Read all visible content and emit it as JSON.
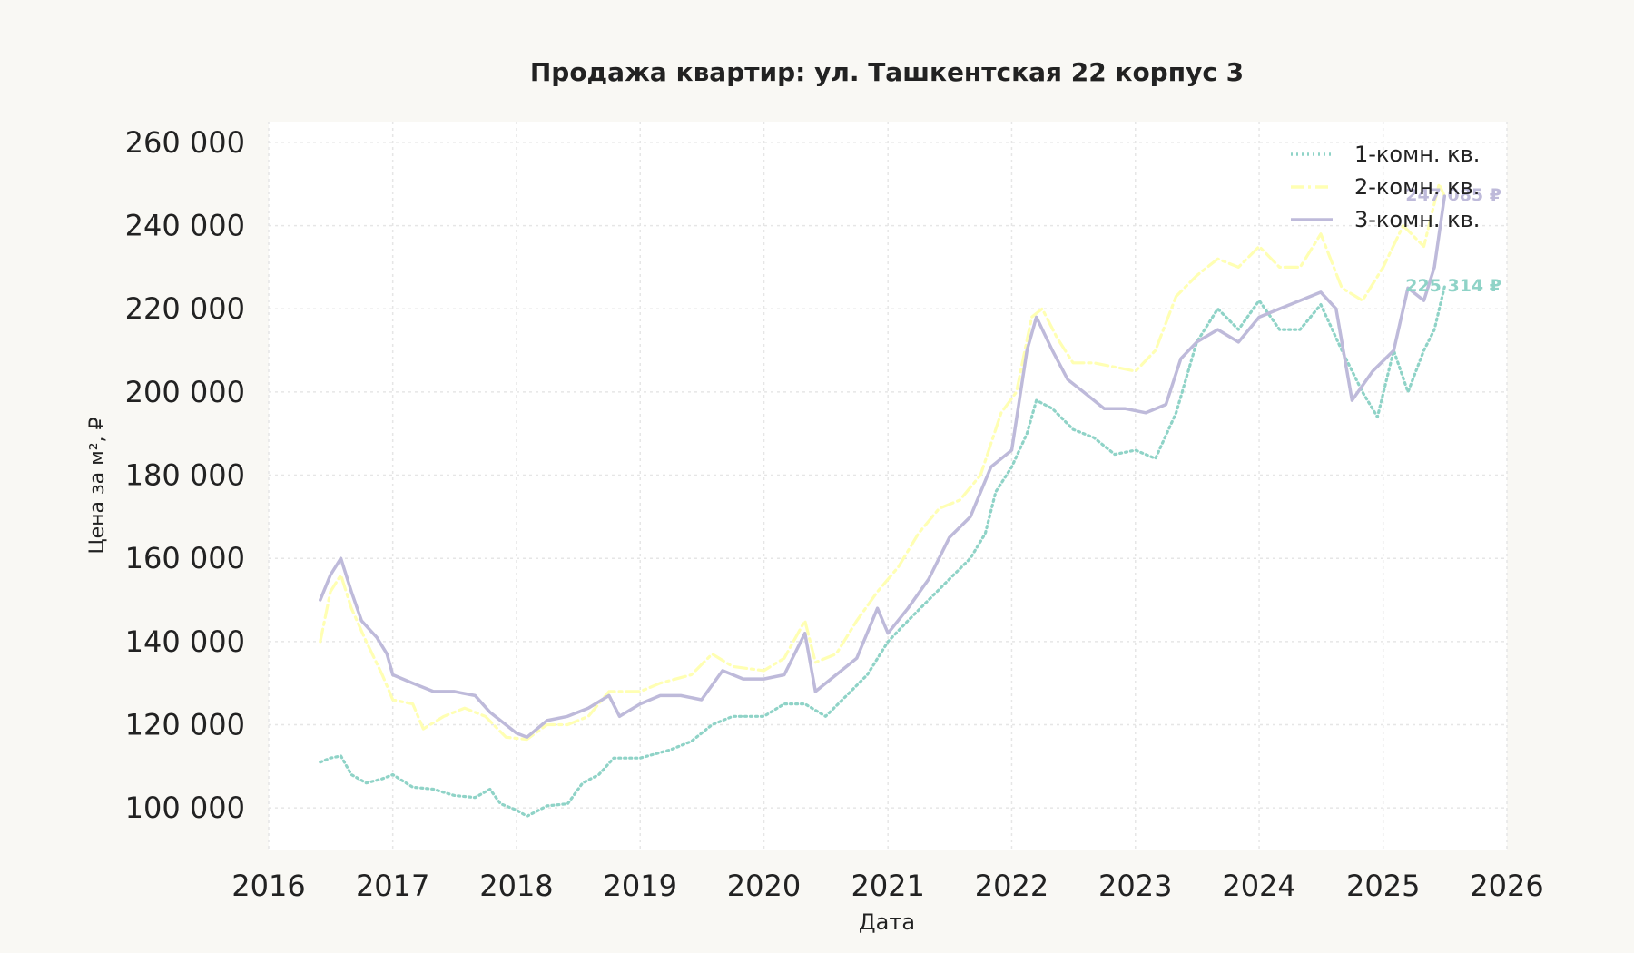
{
  "chart_data": {
    "type": "line",
    "title": "Продажа квартир: ул. Ташкентская 22 корпус 3",
    "xlabel": "Дата",
    "ylabel": "Цена за м², ₽",
    "xlim": [
      "2016-01-01",
      "2026-01-01"
    ],
    "ylim": [
      90000,
      265000
    ],
    "x_ticks": [
      "2016",
      "2017",
      "2018",
      "2019",
      "2020",
      "2021",
      "2022",
      "2023",
      "2024",
      "2025",
      "2026"
    ],
    "y_ticks": [
      100000,
      120000,
      140000,
      160000,
      180000,
      200000,
      220000,
      240000,
      260000
    ],
    "y_tick_labels": [
      "100 000",
      "120 000",
      "140 000",
      "160 000",
      "180 000",
      "200 000",
      "220 000",
      "240 000",
      "260 000"
    ],
    "grid": true,
    "legend_position": "top-right",
    "series": [
      {
        "name": "1-комн. кв.",
        "color": "#8fd3c7",
        "style": "dotted",
        "end_label": "225 314 ₽",
        "points": [
          [
            "2016-06-01",
            111000
          ],
          [
            "2016-07-01",
            112000
          ],
          [
            "2016-08-01",
            112500
          ],
          [
            "2016-09-01",
            108000
          ],
          [
            "2016-10-15",
            106000
          ],
          [
            "2016-12-01",
            107000
          ],
          [
            "2017-01-01",
            108000
          ],
          [
            "2017-03-01",
            105000
          ],
          [
            "2017-05-01",
            104500
          ],
          [
            "2017-07-01",
            103000
          ],
          [
            "2017-09-01",
            102500
          ],
          [
            "2017-10-15",
            104500
          ],
          [
            "2017-11-15",
            101000
          ],
          [
            "2018-01-01",
            99500
          ],
          [
            "2018-02-01",
            98000
          ],
          [
            "2018-04-01",
            100500
          ],
          [
            "2018-06-01",
            101000
          ],
          [
            "2018-07-15",
            106000
          ],
          [
            "2018-09-01",
            108000
          ],
          [
            "2018-10-15",
            112000
          ],
          [
            "2019-01-01",
            112000
          ],
          [
            "2019-04-01",
            114000
          ],
          [
            "2019-06-01",
            116000
          ],
          [
            "2019-08-01",
            120000
          ],
          [
            "2019-10-01",
            122000
          ],
          [
            "2020-01-01",
            122000
          ],
          [
            "2020-03-01",
            125000
          ],
          [
            "2020-05-01",
            125000
          ],
          [
            "2020-07-01",
            122000
          ],
          [
            "2020-09-01",
            127000
          ],
          [
            "2020-11-01",
            132000
          ],
          [
            "2021-01-01",
            140000
          ],
          [
            "2021-03-01",
            145000
          ],
          [
            "2021-05-01",
            150000
          ],
          [
            "2021-07-01",
            155000
          ],
          [
            "2021-09-01",
            160000
          ],
          [
            "2021-10-15",
            166000
          ],
          [
            "2021-11-15",
            176000
          ],
          [
            "2022-01-01",
            182000
          ],
          [
            "2022-02-15",
            190000
          ],
          [
            "2022-03-15",
            198000
          ],
          [
            "2022-05-01",
            196000
          ],
          [
            "2022-07-01",
            191000
          ],
          [
            "2022-09-01",
            189000
          ],
          [
            "2022-11-01",
            185000
          ],
          [
            "2023-01-01",
            186000
          ],
          [
            "2023-03-01",
            184000
          ],
          [
            "2023-05-01",
            195000
          ],
          [
            "2023-07-01",
            212000
          ],
          [
            "2023-09-01",
            220000
          ],
          [
            "2023-11-01",
            215000
          ],
          [
            "2024-01-01",
            222000
          ],
          [
            "2024-03-01",
            215000
          ],
          [
            "2024-05-01",
            215000
          ],
          [
            "2024-07-01",
            221000
          ],
          [
            "2024-09-01",
            210000
          ],
          [
            "2024-11-01",
            200000
          ],
          [
            "2024-12-15",
            194000
          ],
          [
            "2025-02-01",
            210000
          ],
          [
            "2025-03-15",
            200000
          ],
          [
            "2025-05-01",
            210000
          ],
          [
            "2025-06-01",
            215000
          ],
          [
            "2025-07-01",
            225314
          ]
        ]
      },
      {
        "name": "2-комн. кв.",
        "color": "#ffffb3",
        "style": "dashdot",
        "end_label": "",
        "points": [
          [
            "2016-06-01",
            140000
          ],
          [
            "2016-07-01",
            152000
          ],
          [
            "2016-08-01",
            156000
          ],
          [
            "2016-09-01",
            148000
          ],
          [
            "2016-10-15",
            140000
          ],
          [
            "2016-12-01",
            132000
          ],
          [
            "2017-01-01",
            126000
          ],
          [
            "2017-03-01",
            125000
          ],
          [
            "2017-04-01",
            119000
          ],
          [
            "2017-06-01",
            122000
          ],
          [
            "2017-08-01",
            124000
          ],
          [
            "2017-10-01",
            122000
          ],
          [
            "2017-12-01",
            117000
          ],
          [
            "2018-02-01",
            116500
          ],
          [
            "2018-04-01",
            120000
          ],
          [
            "2018-06-01",
            120000
          ],
          [
            "2018-08-01",
            122000
          ],
          [
            "2018-10-01",
            128000
          ],
          [
            "2019-01-01",
            128000
          ],
          [
            "2019-03-01",
            130000
          ],
          [
            "2019-06-01",
            132000
          ],
          [
            "2019-08-01",
            137000
          ],
          [
            "2019-10-01",
            134000
          ],
          [
            "2020-01-01",
            133000
          ],
          [
            "2020-03-01",
            136000
          ],
          [
            "2020-05-01",
            145000
          ],
          [
            "2020-06-01",
            135000
          ],
          [
            "2020-08-01",
            137000
          ],
          [
            "2020-10-01",
            145000
          ],
          [
            "2020-12-01",
            152000
          ],
          [
            "2021-02-01",
            158000
          ],
          [
            "2021-04-01",
            166000
          ],
          [
            "2021-06-01",
            172000
          ],
          [
            "2021-08-01",
            174000
          ],
          [
            "2021-10-01",
            180000
          ],
          [
            "2021-12-01",
            195000
          ],
          [
            "2022-01-15",
            200000
          ],
          [
            "2022-03-01",
            218000
          ],
          [
            "2022-04-01",
            220000
          ],
          [
            "2022-05-15",
            213000
          ],
          [
            "2022-07-01",
            207000
          ],
          [
            "2022-09-01",
            207000
          ],
          [
            "2022-11-01",
            206000
          ],
          [
            "2023-01-01",
            205000
          ],
          [
            "2023-03-01",
            210000
          ],
          [
            "2023-05-01",
            223000
          ],
          [
            "2023-07-01",
            228000
          ],
          [
            "2023-09-01",
            232000
          ],
          [
            "2023-11-01",
            230000
          ],
          [
            "2024-01-01",
            235000
          ],
          [
            "2024-03-01",
            230000
          ],
          [
            "2024-05-01",
            230000
          ],
          [
            "2024-07-01",
            238000
          ],
          [
            "2024-09-01",
            225000
          ],
          [
            "2024-11-01",
            222000
          ],
          [
            "2025-01-01",
            230000
          ],
          [
            "2025-03-01",
            240000
          ],
          [
            "2025-05-01",
            235000
          ],
          [
            "2025-06-15",
            250000
          ],
          [
            "2025-07-01",
            247085
          ]
        ]
      },
      {
        "name": "3-комн. кв.",
        "color": "#bebada",
        "style": "solid",
        "end_label": "247 085 ₽",
        "points": [
          [
            "2016-06-01",
            150000
          ],
          [
            "2016-07-01",
            156000
          ],
          [
            "2016-08-01",
            160000
          ],
          [
            "2016-09-01",
            152000
          ],
          [
            "2016-10-01",
            145000
          ],
          [
            "2016-11-15",
            141000
          ],
          [
            "2016-12-15",
            137000
          ],
          [
            "2017-01-01",
            132000
          ],
          [
            "2017-03-01",
            130000
          ],
          [
            "2017-05-01",
            128000
          ],
          [
            "2017-07-01",
            128000
          ],
          [
            "2017-09-01",
            127000
          ],
          [
            "2017-10-15",
            123000
          ],
          [
            "2018-01-01",
            118000
          ],
          [
            "2018-02-01",
            117000
          ],
          [
            "2018-04-01",
            121000
          ],
          [
            "2018-06-01",
            122000
          ],
          [
            "2018-08-01",
            124000
          ],
          [
            "2018-10-01",
            127000
          ],
          [
            "2018-11-01",
            122000
          ],
          [
            "2019-01-01",
            125000
          ],
          [
            "2019-03-01",
            127000
          ],
          [
            "2019-05-01",
            127000
          ],
          [
            "2019-07-01",
            126000
          ],
          [
            "2019-09-01",
            133000
          ],
          [
            "2019-11-01",
            131000
          ],
          [
            "2020-01-01",
            131000
          ],
          [
            "2020-03-01",
            132000
          ],
          [
            "2020-05-01",
            142000
          ],
          [
            "2020-06-01",
            128000
          ],
          [
            "2020-08-01",
            132000
          ],
          [
            "2020-10-01",
            136000
          ],
          [
            "2020-12-01",
            148000
          ],
          [
            "2021-01-01",
            142000
          ],
          [
            "2021-03-01",
            148000
          ],
          [
            "2021-05-01",
            155000
          ],
          [
            "2021-07-01",
            165000
          ],
          [
            "2021-09-01",
            170000
          ],
          [
            "2021-11-01",
            182000
          ],
          [
            "2022-01-01",
            186000
          ],
          [
            "2022-02-15",
            210000
          ],
          [
            "2022-03-15",
            218000
          ],
          [
            "2022-05-01",
            210000
          ],
          [
            "2022-06-15",
            203000
          ],
          [
            "2022-08-01",
            200000
          ],
          [
            "2022-10-01",
            196000
          ],
          [
            "2022-12-01",
            196000
          ],
          [
            "2023-02-01",
            195000
          ],
          [
            "2023-04-01",
            197000
          ],
          [
            "2023-05-15",
            208000
          ],
          [
            "2023-07-01",
            212000
          ],
          [
            "2023-09-01",
            215000
          ],
          [
            "2023-11-01",
            212000
          ],
          [
            "2024-01-01",
            218000
          ],
          [
            "2024-03-01",
            220000
          ],
          [
            "2024-05-01",
            222000
          ],
          [
            "2024-07-01",
            224000
          ],
          [
            "2024-08-15",
            220000
          ],
          [
            "2024-10-01",
            198000
          ],
          [
            "2024-12-01",
            205000
          ],
          [
            "2025-02-01",
            210000
          ],
          [
            "2025-03-15",
            225000
          ],
          [
            "2025-05-01",
            222000
          ],
          [
            "2025-06-01",
            230000
          ],
          [
            "2025-07-01",
            247085
          ]
        ]
      }
    ]
  }
}
